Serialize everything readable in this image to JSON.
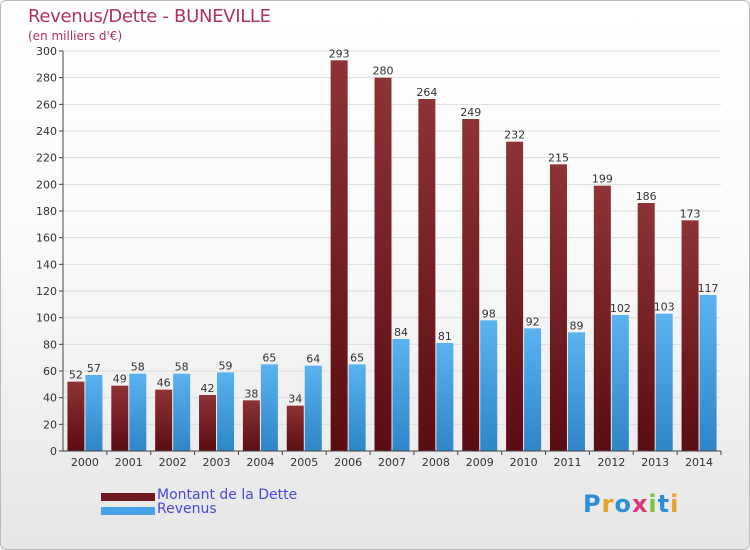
{
  "header": {
    "title": "Revenus/Dette - BUNEVILLE",
    "subtitle": "(en milliers d'€)"
  },
  "legend": [
    {
      "label": "Montant de la Dette",
      "color": "#6e1a1e"
    },
    {
      "label": "Revenus",
      "color": "#4aa3e6"
    }
  ],
  "logo": {
    "text": "Proxiti",
    "letter_colors": [
      "#2f8fd6",
      "#e9a12b",
      "#2f8fd6",
      "#d93a7a",
      "#7cc242",
      "#2f8fd6",
      "#e9a12b"
    ]
  },
  "colors": {
    "title": "#b1325e",
    "debt_bar": "#7a2125",
    "revenue_bar": "#4ea6e8",
    "axis": "#444444",
    "grid": "#dddddd"
  },
  "chart_data": {
    "type": "bar",
    "categories": [
      "2000",
      "2001",
      "2002",
      "2003",
      "2004",
      "2005",
      "2006",
      "2007",
      "2008",
      "2009",
      "2010",
      "2011",
      "2012",
      "2013",
      "2014"
    ],
    "series": [
      {
        "name": "Montant de la Dette",
        "values": [
          52,
          49,
          46,
          42,
          38,
          34,
          293,
          280,
          264,
          249,
          232,
          215,
          199,
          186,
          173
        ]
      },
      {
        "name": "Revenus",
        "values": [
          57,
          58,
          58,
          59,
          65,
          64,
          65,
          84,
          81,
          98,
          92,
          89,
          102,
          103,
          117
        ]
      }
    ],
    "title": "Revenus/Dette - BUNEVILLE",
    "subtitle": "(en milliers d'€)",
    "ylim": [
      0,
      300
    ],
    "yticks": [
      0,
      20,
      40,
      60,
      80,
      100,
      120,
      140,
      160,
      180,
      200,
      220,
      240,
      260,
      280,
      300
    ],
    "grid": true,
    "legend": "bottom-left"
  }
}
